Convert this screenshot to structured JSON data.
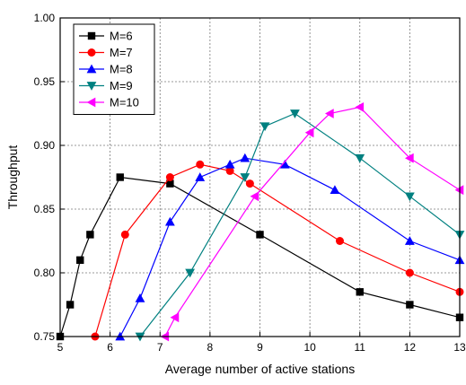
{
  "chart_data": {
    "type": "line",
    "xlabel": "Average number of active stations",
    "ylabel": "Throughput",
    "xlim": [
      5,
      13
    ],
    "ylim": [
      0.75,
      1.0
    ],
    "xticks": [
      "5",
      "6",
      "7",
      "8",
      "9",
      "10",
      "11",
      "12",
      "13"
    ],
    "yticks": [
      "0.75",
      "0.80",
      "0.85",
      "0.90",
      "0.95",
      "1.00"
    ],
    "grid": true,
    "legend_position": "top-left",
    "series": [
      {
        "name": "M=6",
        "color": "#000000",
        "marker": "square",
        "points": [
          [
            5.0,
            0.75
          ],
          [
            5.2,
            0.775
          ],
          [
            5.4,
            0.81
          ],
          [
            5.6,
            0.83
          ],
          [
            6.2,
            0.875
          ],
          [
            7.2,
            0.87
          ],
          [
            9.0,
            0.83
          ],
          [
            11.0,
            0.785
          ],
          [
            12.0,
            0.775
          ],
          [
            13.0,
            0.765
          ]
        ]
      },
      {
        "name": "M=7",
        "color": "#ff0000",
        "marker": "circle",
        "points": [
          [
            5.7,
            0.75
          ],
          [
            6.3,
            0.83
          ],
          [
            7.2,
            0.875
          ],
          [
            7.8,
            0.885
          ],
          [
            8.4,
            0.88
          ],
          [
            8.8,
            0.87
          ],
          [
            10.6,
            0.825
          ],
          [
            12.0,
            0.8
          ],
          [
            13.0,
            0.785
          ]
        ]
      },
      {
        "name": "M=8",
        "color": "#0000ff",
        "marker": "triangle-up",
        "points": [
          [
            6.2,
            0.75
          ],
          [
            6.6,
            0.78
          ],
          [
            7.2,
            0.84
          ],
          [
            7.8,
            0.875
          ],
          [
            8.4,
            0.885
          ],
          [
            8.7,
            0.89
          ],
          [
            9.5,
            0.885
          ],
          [
            10.5,
            0.865
          ],
          [
            12.0,
            0.825
          ],
          [
            13.0,
            0.81
          ]
        ]
      },
      {
        "name": "M=9",
        "color": "#008080",
        "marker": "triangle-down",
        "points": [
          [
            6.6,
            0.75
          ],
          [
            7.6,
            0.8
          ],
          [
            8.7,
            0.875
          ],
          [
            9.1,
            0.915
          ],
          [
            9.7,
            0.925
          ],
          [
            11.0,
            0.89
          ],
          [
            12.0,
            0.86
          ],
          [
            13.0,
            0.83
          ]
        ]
      },
      {
        "name": "M=10",
        "color": "#ff00ff",
        "marker": "triangle-left",
        "points": [
          [
            7.1,
            0.75
          ],
          [
            7.3,
            0.765
          ],
          [
            8.9,
            0.86
          ],
          [
            10.0,
            0.91
          ],
          [
            10.4,
            0.925
          ],
          [
            11.0,
            0.93
          ],
          [
            12.0,
            0.89
          ],
          [
            13.0,
            0.865
          ]
        ]
      }
    ]
  }
}
